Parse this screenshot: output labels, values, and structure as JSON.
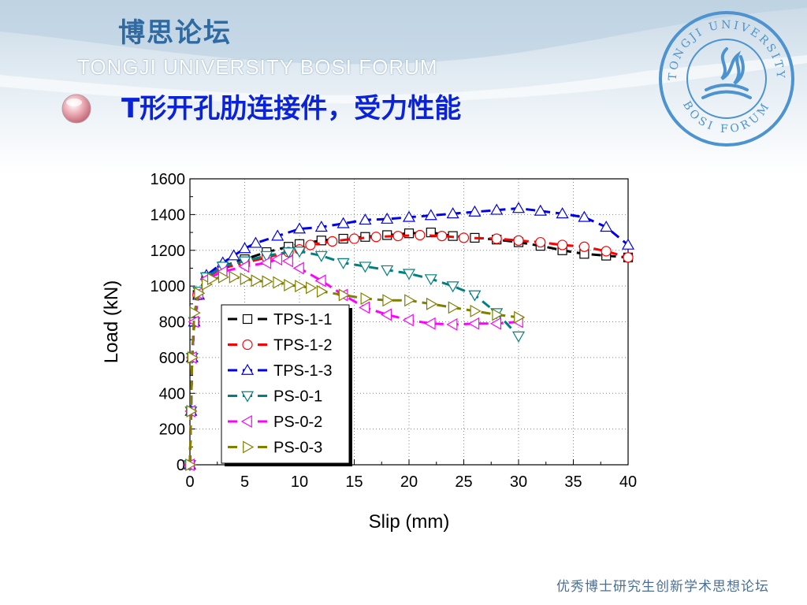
{
  "header": {
    "forum_name_cn": "博思论坛",
    "forum_name_en": "TONGJI UNIVERSITY BOSI FORUM",
    "slide_title": "T形开孔肋连接件，受力性能",
    "seal_top_text": "TONGJI UNIVERSITY",
    "seal_bottom_text": "BOSI FORUM"
  },
  "footer": {
    "slogan": "优秀博士研究生创新学术思想论坛"
  },
  "colors": {
    "title": "#0a22d8",
    "forum": "#2f6aa3"
  },
  "chart_data": {
    "type": "line",
    "xlabel": "Slip (mm)",
    "ylabel": "Load (kN)",
    "xlim": [
      0,
      40
    ],
    "ylim": [
      0,
      1600
    ],
    "xticks": [
      0,
      5,
      10,
      15,
      20,
      25,
      30,
      35,
      40
    ],
    "yticks": [
      0,
      200,
      400,
      600,
      800,
      1000,
      1200,
      1400,
      1600
    ],
    "grid": true,
    "legend_position": "bottom-left",
    "series": [
      {
        "name": "TPS-1-1",
        "color": "#000000",
        "marker": "square",
        "points": [
          [
            0,
            0
          ],
          [
            0.1,
            300
          ],
          [
            0.2,
            600
          ],
          [
            0.4,
            800
          ],
          [
            0.7,
            950
          ],
          [
            1.5,
            1050
          ],
          [
            3,
            1110
          ],
          [
            5,
            1150
          ],
          [
            7,
            1190
          ],
          [
            9,
            1220
          ],
          [
            10,
            1235
          ],
          [
            12,
            1255
          ],
          [
            14,
            1265
          ],
          [
            16,
            1275
          ],
          [
            18,
            1285
          ],
          [
            20,
            1295
          ],
          [
            22,
            1300
          ],
          [
            24,
            1280
          ],
          [
            26,
            1270
          ],
          [
            28,
            1260
          ],
          [
            30,
            1245
          ],
          [
            32,
            1225
          ],
          [
            34,
            1200
          ],
          [
            36,
            1180
          ],
          [
            38,
            1170
          ],
          [
            40,
            1160
          ]
        ]
      },
      {
        "name": "TPS-1-2",
        "color": "#ff0000",
        "marker": "circle",
        "points": [
          [
            0,
            0
          ],
          [
            0.1,
            300
          ],
          [
            0.2,
            600
          ],
          [
            0.4,
            800
          ],
          [
            0.7,
            950
          ],
          [
            1.5,
            1050
          ],
          [
            3,
            1100
          ],
          [
            5,
            1130
          ],
          [
            7,
            1160
          ],
          [
            9,
            1190
          ],
          [
            10,
            1205
          ],
          [
            11,
            1230
          ],
          [
            13,
            1250
          ],
          [
            15,
            1265
          ],
          [
            17,
            1275
          ],
          [
            19,
            1280
          ],
          [
            21,
            1285
          ],
          [
            23,
            1280
          ],
          [
            25,
            1270
          ],
          [
            28,
            1265
          ],
          [
            30,
            1255
          ],
          [
            32,
            1245
          ],
          [
            34,
            1230
          ],
          [
            36,
            1220
          ],
          [
            38,
            1195
          ],
          [
            40,
            1160
          ]
        ]
      },
      {
        "name": "TPS-1-3",
        "color": "#0000ee",
        "marker": "triangle-up",
        "points": [
          [
            0,
            0
          ],
          [
            0.1,
            300
          ],
          [
            0.2,
            600
          ],
          [
            0.4,
            800
          ],
          [
            0.8,
            950
          ],
          [
            1.5,
            1060
          ],
          [
            3,
            1130
          ],
          [
            4,
            1170
          ],
          [
            5,
            1210
          ],
          [
            6,
            1240
          ],
          [
            8,
            1280
          ],
          [
            10,
            1320
          ],
          [
            12,
            1330
          ],
          [
            14,
            1350
          ],
          [
            16,
            1370
          ],
          [
            18,
            1375
          ],
          [
            20,
            1385
          ],
          [
            22,
            1395
          ],
          [
            24,
            1405
          ],
          [
            26,
            1415
          ],
          [
            28,
            1425
          ],
          [
            30,
            1435
          ],
          [
            32,
            1420
          ],
          [
            34,
            1405
          ],
          [
            36,
            1385
          ],
          [
            38,
            1330
          ],
          [
            40,
            1230
          ]
        ]
      },
      {
        "name": "PS-0-1",
        "color": "#008080",
        "marker": "triangle-down",
        "points": [
          [
            0,
            0
          ],
          [
            0.1,
            300
          ],
          [
            0.2,
            600
          ],
          [
            0.4,
            800
          ],
          [
            0.8,
            970
          ],
          [
            1.5,
            1050
          ],
          [
            3,
            1110
          ],
          [
            5,
            1140
          ],
          [
            7,
            1170
          ],
          [
            9,
            1190
          ],
          [
            10,
            1195
          ],
          [
            12,
            1170
          ],
          [
            14,
            1130
          ],
          [
            16,
            1110
          ],
          [
            18,
            1090
          ],
          [
            20,
            1070
          ],
          [
            22,
            1040
          ],
          [
            24,
            1000
          ],
          [
            26,
            950
          ],
          [
            28,
            850
          ],
          [
            30,
            720
          ]
        ]
      },
      {
        "name": "PS-0-2",
        "color": "#ff00ff",
        "marker": "triangle-left",
        "points": [
          [
            0,
            0
          ],
          [
            0.1,
            300
          ],
          [
            0.2,
            600
          ],
          [
            0.4,
            800
          ],
          [
            0.8,
            960
          ],
          [
            1.5,
            1040
          ],
          [
            3,
            1080
          ],
          [
            5,
            1110
          ],
          [
            7,
            1130
          ],
          [
            8,
            1150
          ],
          [
            9,
            1140
          ],
          [
            10,
            1100
          ],
          [
            12,
            1030
          ],
          [
            14,
            950
          ],
          [
            16,
            880
          ],
          [
            18,
            840
          ],
          [
            20,
            810
          ],
          [
            22,
            790
          ],
          [
            24,
            785
          ],
          [
            26,
            790
          ],
          [
            28,
            790
          ],
          [
            30,
            800
          ]
        ]
      },
      {
        "name": "PS-0-3",
        "color": "#808000",
        "marker": "triangle-right",
        "points": [
          [
            0,
            0
          ],
          [
            0.1,
            300
          ],
          [
            0.2,
            600
          ],
          [
            0.4,
            850
          ],
          [
            0.8,
            960
          ],
          [
            1.5,
            1010
          ],
          [
            2,
            1040
          ],
          [
            3,
            1050
          ],
          [
            4,
            1050
          ],
          [
            5,
            1040
          ],
          [
            6,
            1030
          ],
          [
            7,
            1025
          ],
          [
            8,
            1020
          ],
          [
            9,
            1005
          ],
          [
            10,
            1000
          ],
          [
            11,
            990
          ],
          [
            12,
            970
          ],
          [
            14,
            950
          ],
          [
            16,
            930
          ],
          [
            18,
            920
          ],
          [
            20,
            920
          ],
          [
            22,
            900
          ],
          [
            24,
            880
          ],
          [
            26,
            860
          ],
          [
            28,
            840
          ],
          [
            30,
            825
          ]
        ]
      }
    ]
  }
}
